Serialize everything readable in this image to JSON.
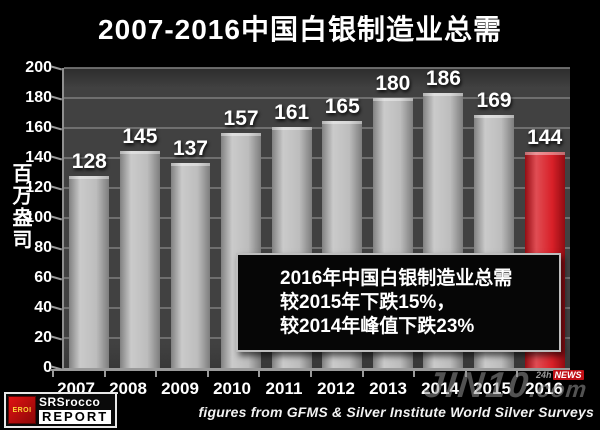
{
  "title": "2007-2016中国白银制造业总需",
  "chart_data": {
    "type": "bar",
    "title": "2007-2016中国白银制造业总需",
    "xlabel": "",
    "ylabel": "百万盎司",
    "categories": [
      "2007",
      "2008",
      "2009",
      "2010",
      "2011",
      "2012",
      "2013",
      "2014",
      "2015",
      "2016"
    ],
    "values": [
      128,
      145,
      137,
      157,
      161,
      165,
      180,
      186,
      169,
      144
    ],
    "ylim": [
      0,
      200
    ],
    "ystep": 20,
    "grid": true,
    "legend": false,
    "highlight_index": 9,
    "bar_color_default": "#b9b9b9",
    "bar_color_highlight": "#d6121b"
  },
  "annotation": {
    "lines": [
      "2016年中国白银制造业总需",
      "较2015年下跌15%，",
      "较2014年峰值下跌23%"
    ]
  },
  "footer": {
    "source": "figures from GFMS & Silver Institute World Silver Surveys"
  },
  "logo": {
    "icon_text": "EROI",
    "line1": "SRSrocco",
    "line2": "REPORT"
  },
  "watermark": {
    "main": "JIN10",
    "suffix": ".com",
    "badge_left": "24h",
    "badge_right": "NEWS",
    "badge_color": "#c01016"
  },
  "colors": {
    "background": "#000000",
    "plot_background": "#414141",
    "gridline": "#787878",
    "text": "#ffffff"
  }
}
